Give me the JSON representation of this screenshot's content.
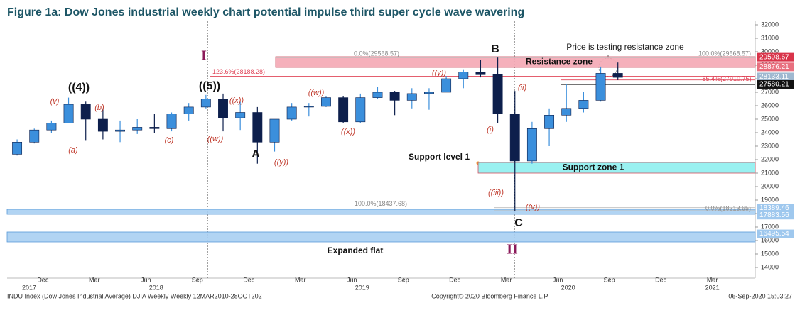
{
  "chart_data": {
    "type": "candlestick",
    "title": "Figure 1a: Dow Jones industrial weekly chart potential impulse third super cycle wave wavering",
    "xlim": [
      0,
      43.5
    ],
    "xticks": [
      {
        "value": 2,
        "label": "Dec"
      },
      {
        "value": 5,
        "label": "Mar"
      },
      {
        "value": 8,
        "label": "Jun"
      },
      {
        "value": 11,
        "label": "Sep"
      },
      {
        "value": 14,
        "label": "Dec"
      },
      {
        "value": 17,
        "label": "Mar"
      },
      {
        "value": 20,
        "label": "Jun"
      },
      {
        "value": 23,
        "label": "Sep"
      },
      {
        "value": 26,
        "label": "Dec"
      },
      {
        "value": 29,
        "label": "Mar"
      },
      {
        "value": 32,
        "label": "Jun"
      },
      {
        "value": 35,
        "label": "Sep"
      },
      {
        "value": 38,
        "label": "Dec"
      },
      {
        "value": 41,
        "label": "Mar"
      }
    ],
    "year_ticks": [
      {
        "value": 1.2,
        "label": "2017"
      },
      {
        "value": 8.6,
        "label": "2018"
      },
      {
        "value": 20.6,
        "label": "2019"
      },
      {
        "value": 32.6,
        "label": "2020"
      },
      {
        "value": 41,
        "label": "2021"
      }
    ],
    "ylim": [
      14000,
      32000
    ],
    "yticks": [
      14000,
      15000,
      16000,
      17000,
      18000,
      19000,
      20000,
      21000,
      22000,
      23000,
      24000,
      25000,
      26000,
      27000,
      28000,
      29000,
      30000,
      31000,
      32000
    ],
    "up_color": "#3b8fdc",
    "down_color": "#0d1f4c",
    "candles": [
      {
        "x": 0.5,
        "o": 22400,
        "h": 23500,
        "l": 22300,
        "c": 23300
      },
      {
        "x": 1.5,
        "o": 23300,
        "h": 24300,
        "l": 23200,
        "c": 24200
      },
      {
        "x": 2.5,
        "o": 24200,
        "h": 24900,
        "l": 24000,
        "c": 24700
      },
      {
        "x": 3.5,
        "o": 24700,
        "h": 26600,
        "l": 24700,
        "c": 26100
      },
      {
        "x": 4.5,
        "o": 26100,
        "h": 26300,
        "l": 23400,
        "c": 25000
      },
      {
        "x": 5.5,
        "o": 25000,
        "h": 25800,
        "l": 23500,
        "c": 24100
      },
      {
        "x": 6.5,
        "o": 24100,
        "h": 24900,
        "l": 23300,
        "c": 24200
      },
      {
        "x": 7.5,
        "o": 24200,
        "h": 25000,
        "l": 23900,
        "c": 24400
      },
      {
        "x": 8.5,
        "o": 24400,
        "h": 25400,
        "l": 24000,
        "c": 24300
      },
      {
        "x": 9.5,
        "o": 24300,
        "h": 25500,
        "l": 24100,
        "c": 25400
      },
      {
        "x": 10.5,
        "o": 25400,
        "h": 26200,
        "l": 24900,
        "c": 25900
      },
      {
        "x": 11.5,
        "o": 25900,
        "h": 26800,
        "l": 25800,
        "c": 26500
      },
      {
        "x": 12.5,
        "o": 26500,
        "h": 26900,
        "l": 24100,
        "c": 25100
      },
      {
        "x": 13.5,
        "o": 25100,
        "h": 26300,
        "l": 24200,
        "c": 25500
      },
      {
        "x": 14.5,
        "o": 25500,
        "h": 25900,
        "l": 21700,
        "c": 23300
      },
      {
        "x": 15.5,
        "o": 23300,
        "h": 25000,
        "l": 22600,
        "c": 25000
      },
      {
        "x": 16.5,
        "o": 25000,
        "h": 26200,
        "l": 24900,
        "c": 25900
      },
      {
        "x": 17.5,
        "o": 25900,
        "h": 26200,
        "l": 25200,
        "c": 25950
      },
      {
        "x": 18.5,
        "o": 25950,
        "h": 26700,
        "l": 25900,
        "c": 26600
      },
      {
        "x": 19.5,
        "o": 26600,
        "h": 26700,
        "l": 24700,
        "c": 24800
      },
      {
        "x": 20.5,
        "o": 24800,
        "h": 26900,
        "l": 24700,
        "c": 26600
      },
      {
        "x": 21.5,
        "o": 26600,
        "h": 27400,
        "l": 26500,
        "c": 27000
      },
      {
        "x": 22.5,
        "o": 27000,
        "h": 27100,
        "l": 25300,
        "c": 26400
      },
      {
        "x": 23.5,
        "o": 26400,
        "h": 27300,
        "l": 25800,
        "c": 26900
      },
      {
        "x": 24.5,
        "o": 26900,
        "h": 27300,
        "l": 25700,
        "c": 27000
      },
      {
        "x": 25.5,
        "o": 27000,
        "h": 28200,
        "l": 27000,
        "c": 28000
      },
      {
        "x": 26.5,
        "o": 28000,
        "h": 28700,
        "l": 27300,
        "c": 28500
      },
      {
        "x": 27.5,
        "o": 28500,
        "h": 29400,
        "l": 28100,
        "c": 28300
      },
      {
        "x": 28.5,
        "o": 28300,
        "h": 29570,
        "l": 24700,
        "c": 25400
      },
      {
        "x": 29.5,
        "o": 25400,
        "h": 27100,
        "l": 18213,
        "c": 21900
      },
      {
        "x": 30.5,
        "o": 21900,
        "h": 24800,
        "l": 21700,
        "c": 24300
      },
      {
        "x": 31.5,
        "o": 24300,
        "h": 25800,
        "l": 23000,
        "c": 25300
      },
      {
        "x": 32.5,
        "o": 25300,
        "h": 27580,
        "l": 24800,
        "c": 25800
      },
      {
        "x": 33.5,
        "o": 25800,
        "h": 27000,
        "l": 25500,
        "c": 26400
      },
      {
        "x": 34.5,
        "o": 26400,
        "h": 28900,
        "l": 26300,
        "c": 28400
      },
      {
        "x": 35.5,
        "o": 28400,
        "h": 29200,
        "l": 27900,
        "c": 28100
      }
    ],
    "zones": [
      {
        "label": "Resistance zone",
        "from": 28842,
        "to": 29632,
        "color": "#f4a7b4"
      },
      {
        "label": "Support zone 1",
        "from": 21000,
        "to": 21790,
        "color": "#8ef0f0"
      },
      {
        "from": 17947,
        "to": 18316,
        "color": "#a9cff2"
      },
      {
        "from": 15895,
        "to": 16632,
        "color": "#a9cff2"
      }
    ],
    "levels": [
      {
        "value": 29568.57,
        "labels": [
          "0.0%(29568.57)",
          "100.0%(29568.57)"
        ],
        "color": "#bbbbbb"
      },
      {
        "value": 28188.28,
        "labels": [
          "123.6%(28188.28)"
        ],
        "color": "#e0475a"
      },
      {
        "value": 27910.75,
        "labels": [
          "85.4%(27910.75)"
        ],
        "color": "#e0475a"
      },
      {
        "value": 27580.21,
        "labels": [],
        "color": "#222222"
      },
      {
        "value": 18437.68,
        "labels": [
          "100.0%(18437.68)"
        ],
        "color": "#bbbbbb"
      },
      {
        "value": 18213.65,
        "labels": [
          "0.0%(18213.65)"
        ],
        "color": "#bbbbbb"
      }
    ],
    "price_tags": [
      {
        "value": 29598.67,
        "color": "#d9344a"
      },
      {
        "value": 28876.21,
        "color": "#e8707f"
      },
      {
        "value": 28133.11,
        "color": "#9fb8d0"
      },
      {
        "value": 27580.21,
        "color": "#111111"
      },
      {
        "value": 18389.46,
        "color": "#9fc8ee"
      },
      {
        "value": 17883.56,
        "color": "#9fc8ee"
      },
      {
        "value": 16495.54,
        "color": "#9fc8ee"
      }
    ],
    "annotations": [
      "((4))",
      "((5))",
      "B",
      "A",
      "C",
      "I",
      "II",
      "(v)",
      "(b)",
      "(a)",
      "(c)",
      "((w))",
      "((x))",
      "((y))",
      "((w))",
      "((x))",
      "((y))",
      "(ii)",
      "(i)",
      "((iii))",
      "((v))",
      "Price is testing resistance zone",
      "Support level 1",
      "Expanded flat"
    ],
    "footer": [
      "INDU Index (Dow Jones Industrial Average) DJIA Weekly  Weekly 12MAR2010-28OCT202",
      "Copyright© 2020 Bloomberg Finance L.P.",
      "06-Sep-2020 15:03:27"
    ]
  }
}
